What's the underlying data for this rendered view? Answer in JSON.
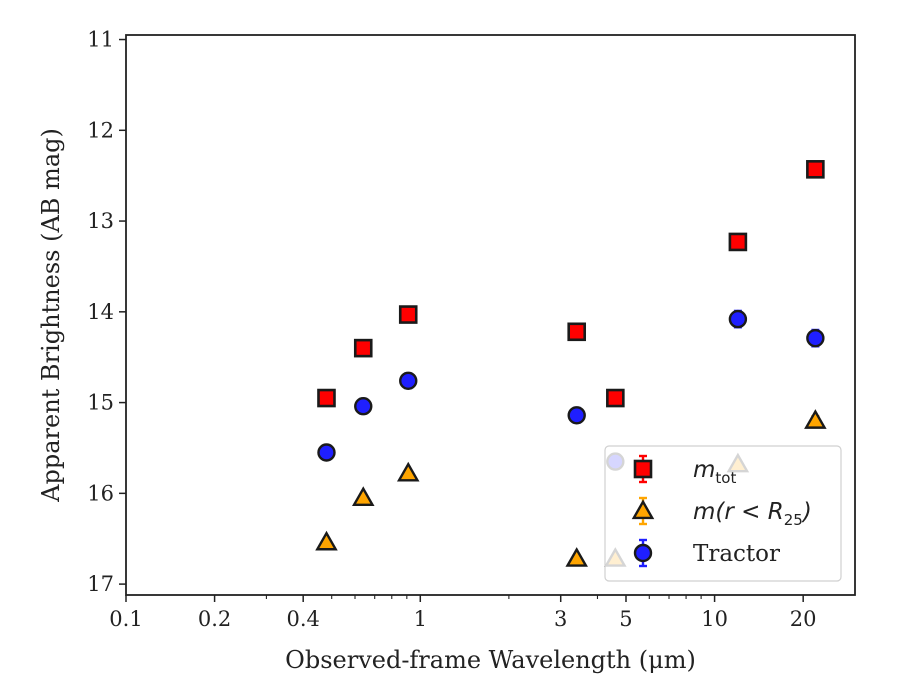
{
  "chart_data": {
    "type": "scatter",
    "xlabel": "Observed-frame Wavelength (μm)",
    "ylabel": "Apparent Brightness (AB mag)",
    "x_scale": "log",
    "xlim": [
      0.1,
      30
    ],
    "ylim": [
      17.12,
      10.95
    ],
    "y_inverted": true,
    "x_ticks": [
      0.1,
      0.2,
      0.4,
      1,
      3,
      5,
      10,
      20
    ],
    "x_tick_labels": [
      "0.1",
      "0.2",
      "0.4",
      "1",
      "3",
      "5",
      "10",
      "20"
    ],
    "y_ticks": [
      11,
      12,
      13,
      14,
      15,
      16,
      17
    ],
    "y_tick_labels": [
      "11",
      "12",
      "13",
      "14",
      "15",
      "16",
      "17"
    ],
    "grid": false,
    "legend_position": "lower-right",
    "series": [
      {
        "name": "m_tot",
        "legend_label": "m",
        "legend_sub": "tot",
        "marker": "square",
        "color": "#ff0000",
        "edge_color": "#1a1a1a",
        "error_color": "#ff0000",
        "x": [
          0.48,
          0.64,
          0.91,
          3.4,
          4.6,
          12.0,
          22.0
        ],
        "y": [
          14.95,
          14.4,
          14.03,
          14.22,
          14.95,
          13.23,
          12.43
        ],
        "yerr": [
          0.04,
          0.04,
          0.04,
          0.04,
          0.04,
          0.05,
          0.06
        ]
      },
      {
        "name": "m(r < R25)",
        "legend_label": "m(r < R",
        "legend_sub": "25",
        "legend_tail": ")",
        "marker": "triangle",
        "color": "#ffa500",
        "edge_color": "#1a1a1a",
        "error_color": "#ffa500",
        "x": [
          0.48,
          0.64,
          0.91,
          3.4,
          4.6,
          12.0,
          22.0
        ],
        "y": [
          16.54,
          16.05,
          15.78,
          16.72,
          16.72,
          15.68,
          15.2
        ],
        "yerr": [
          0.03,
          0.03,
          0.03,
          0.03,
          0.03,
          0.04,
          0.05
        ]
      },
      {
        "name": "Tractor",
        "legend_label": "Tractor",
        "marker": "circle",
        "color": "#1f1fff",
        "edge_color": "#1a1a1a",
        "error_color": "#1f1fff",
        "x": [
          0.48,
          0.64,
          0.91,
          3.4,
          4.6,
          12.0,
          22.0
        ],
        "y": [
          15.55,
          15.04,
          14.76,
          15.14,
          15.65,
          14.08,
          14.29
        ],
        "yerr": [
          0.08,
          0.08,
          0.08,
          0.08,
          0.08,
          0.09,
          0.09
        ]
      }
    ]
  }
}
